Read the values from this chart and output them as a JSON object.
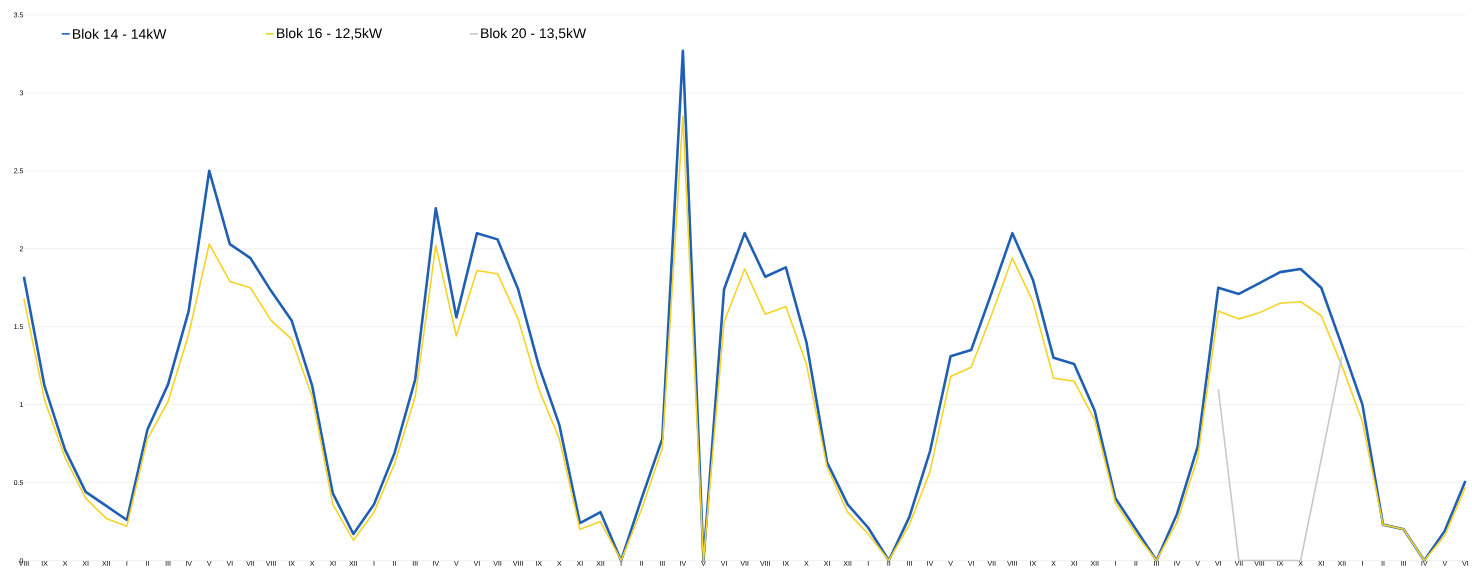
{
  "chart_data": {
    "type": "line",
    "categories": [
      "VIII",
      "IX",
      "X",
      "XI",
      "XII",
      "I",
      "II",
      "III",
      "IV",
      "V",
      "VI",
      "VII",
      "VIII",
      "IX",
      "X",
      "XI",
      "XII",
      "I",
      "II",
      "III",
      "IV",
      "V",
      "VI",
      "VII",
      "VIII",
      "IX",
      "X",
      "XI",
      "XII",
      "I",
      "II",
      "III",
      "IV",
      "V",
      "VI",
      "VII",
      "VIII",
      "IX",
      "X",
      "XI",
      "XII",
      "I",
      "II",
      "III",
      "IV",
      "V",
      "VI",
      "VII",
      "VIII",
      "IX",
      "X",
      "XI",
      "XII",
      "I",
      "II",
      "III",
      "IV",
      "V",
      "VI",
      "VII",
      "VIII",
      "IX",
      "X",
      "XI",
      "XII",
      "I",
      "II",
      "III",
      "IV",
      "V",
      "VI"
    ],
    "series": [
      {
        "name": "Blok 14 - 14kW",
        "color": "#1f5fb4",
        "values": [
          1.82,
          1.12,
          0.71,
          0.44,
          0.35,
          0.26,
          0.84,
          1.13,
          1.6,
          2.5,
          2.03,
          1.94,
          1.73,
          1.54,
          1.12,
          0.43,
          0.17,
          0.36,
          0.69,
          1.16,
          2.26,
          1.56,
          2.1,
          2.06,
          1.74,
          1.25,
          0.87,
          0.24,
          0.31,
          0,
          0.4,
          0.78,
          3.27,
          0,
          1.74,
          2.1,
          1.82,
          1.88,
          1.4,
          0.63,
          0.36,
          0.21,
          0,
          0.28,
          0.7,
          1.31,
          1.35,
          1.72,
          2.1,
          1.8,
          1.3,
          1.26,
          0.96,
          0.4,
          0.2,
          0,
          0.3,
          0.73,
          1.75,
          1.71,
          1.78,
          1.85,
          1.87,
          1.75,
          1.38,
          1.0,
          0.23,
          0.2,
          0,
          0.19,
          0.51
        ]
      },
      {
        "name": "Blok 16 - 12,5kW",
        "color": "#f5d327",
        "values": [
          1.68,
          1.03,
          0.66,
          0.4,
          0.27,
          0.22,
          0.78,
          1.02,
          1.45,
          2.03,
          1.79,
          1.75,
          1.54,
          1.42,
          1.05,
          0.36,
          0.13,
          0.31,
          0.62,
          1.05,
          2.02,
          1.44,
          1.86,
          1.84,
          1.55,
          1.1,
          0.78,
          0.2,
          0.25,
          0,
          0.33,
          0.72,
          2.85,
          0,
          1.53,
          1.87,
          1.58,
          1.63,
          1.26,
          0.6,
          0.31,
          0.17,
          0,
          0.23,
          0.57,
          1.18,
          1.24,
          1.58,
          1.94,
          1.66,
          1.17,
          1.15,
          0.9,
          0.37,
          0.17,
          0,
          0.25,
          0.66,
          1.6,
          1.55,
          1.59,
          1.65,
          1.66,
          1.57,
          1.25,
          0.89,
          0.23,
          0.2,
          0,
          0.16,
          0.47
        ]
      },
      {
        "name": "Blok 20 - 13,5kW",
        "color": "#c8c8c8",
        "values": [
          null,
          null,
          null,
          null,
          null,
          null,
          null,
          null,
          null,
          null,
          null,
          null,
          null,
          null,
          null,
          null,
          null,
          null,
          null,
          null,
          null,
          null,
          null,
          null,
          null,
          null,
          null,
          null,
          null,
          null,
          null,
          null,
          null,
          null,
          null,
          null,
          null,
          null,
          null,
          null,
          null,
          null,
          null,
          null,
          null,
          null,
          null,
          null,
          null,
          null,
          null,
          null,
          null,
          null,
          null,
          null,
          null,
          null,
          1.1,
          0,
          0,
          0,
          0,
          0.65,
          1.31,
          null,
          null,
          null,
          null,
          null,
          null
        ]
      }
    ],
    "ylim": [
      0,
      3.5
    ],
    "yticks": [
      0,
      0.5,
      1,
      1.5,
      2,
      2.5,
      3,
      3.5
    ],
    "grid": "y",
    "legend": "top left",
    "marker": "none",
    "line_style": "solid"
  }
}
